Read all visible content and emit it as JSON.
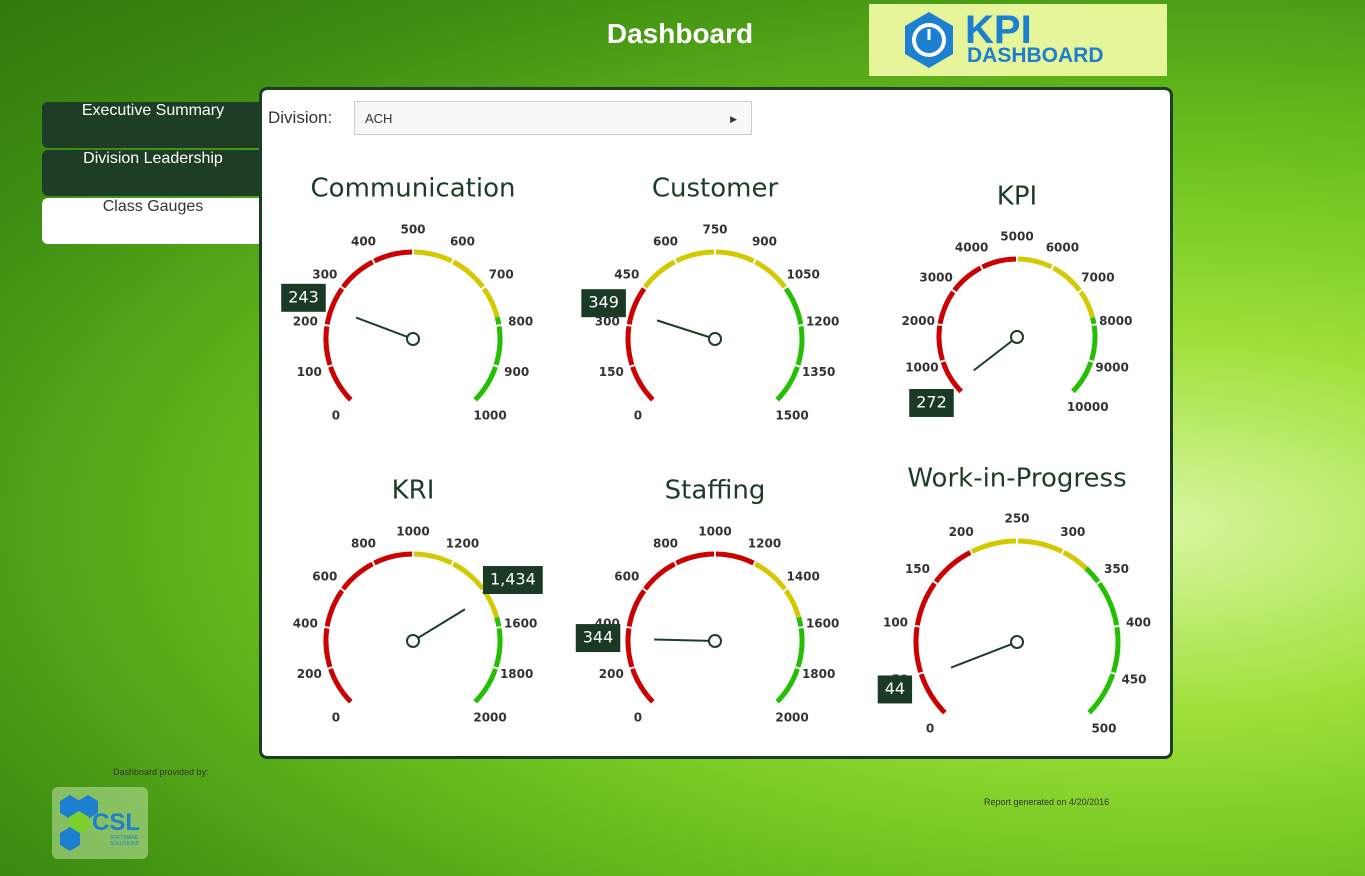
{
  "header": {
    "title": "Dashboard",
    "logo_line1": "KPI",
    "logo_line2": "DASHBOARD"
  },
  "nav": [
    {
      "label": "Executive Summary"
    },
    {
      "label": "Division Leadership"
    },
    {
      "label": "Class Gauges"
    }
  ],
  "filter": {
    "label": "Division:",
    "value": "ACH"
  },
  "gauges": [
    {
      "type": "gauge",
      "title": "Communication",
      "value": 243,
      "range": [
        0,
        1000
      ],
      "ticks": [
        0,
        100,
        200,
        300,
        400,
        500,
        600,
        700,
        800,
        900,
        1000
      ],
      "bands": [
        {
          "from": 0,
          "to": 500,
          "color": "#cc0000"
        },
        {
          "from": 500,
          "to": 780,
          "color": "#d4c800"
        },
        {
          "from": 780,
          "to": 1000,
          "color": "#22c000"
        }
      ]
    },
    {
      "type": "gauge",
      "title": "Customer",
      "value": 349,
      "range": [
        0,
        1500
      ],
      "ticks": [
        0,
        150,
        300,
        450,
        600,
        750,
        900,
        1050,
        1200,
        1350,
        1500
      ],
      "bands": [
        {
          "from": 0,
          "to": 450,
          "color": "#cc0000"
        },
        {
          "from": 450,
          "to": 1050,
          "color": "#d4c800"
        },
        {
          "from": 1050,
          "to": 1500,
          "color": "#22c000"
        }
      ]
    },
    {
      "type": "gauge",
      "title": "KPI",
      "value": 272,
      "range": [
        0,
        10000
      ],
      "ticks": [
        0,
        1000,
        2000,
        3000,
        4000,
        5000,
        6000,
        7000,
        8000,
        9000,
        10000
      ],
      "bands": [
        {
          "from": 0,
          "to": 5000,
          "color": "#cc0000"
        },
        {
          "from": 5000,
          "to": 7800,
          "color": "#d4c800"
        },
        {
          "from": 7800,
          "to": 10000,
          "color": "#22c000"
        }
      ]
    },
    {
      "type": "gauge",
      "title": "KRI",
      "value": 1434,
      "value_label": "1,434",
      "range": [
        0,
        2000
      ],
      "ticks": [
        0,
        200,
        400,
        600,
        800,
        1000,
        1200,
        1400,
        1600,
        1800,
        2000
      ],
      "bands": [
        {
          "from": 0,
          "to": 1000,
          "color": "#cc0000"
        },
        {
          "from": 1000,
          "to": 1550,
          "color": "#d4c800"
        },
        {
          "from": 1550,
          "to": 2000,
          "color": "#22c000"
        }
      ]
    },
    {
      "type": "gauge",
      "title": "Staffing",
      "value": 344,
      "range": [
        0,
        2000
      ],
      "ticks": [
        0,
        200,
        400,
        600,
        800,
        1000,
        1200,
        1400,
        1600,
        1800,
        2000
      ],
      "bands": [
        {
          "from": 0,
          "to": 1200,
          "color": "#cc0000"
        },
        {
          "from": 1200,
          "to": 1550,
          "color": "#d4c800"
        },
        {
          "from": 1550,
          "to": 2000,
          "color": "#22c000"
        }
      ]
    },
    {
      "type": "gauge",
      "title": "Work-in-Progress",
      "value": 44,
      "range": [
        0,
        500
      ],
      "ticks": [
        0,
        50,
        100,
        150,
        200,
        250,
        300,
        350,
        400,
        450,
        500
      ],
      "bands": [
        {
          "from": 0,
          "to": 200,
          "color": "#cc0000"
        },
        {
          "from": 200,
          "to": 330,
          "color": "#d4c800"
        },
        {
          "from": 330,
          "to": 500,
          "color": "#22c000"
        }
      ]
    }
  ],
  "footer": {
    "provided_by": "Dashboard provided by:",
    "csl": "CSL",
    "csl_sub": "SOFTWARE SOLUTIONS",
    "report": "Report generated on 4/20/2016"
  }
}
